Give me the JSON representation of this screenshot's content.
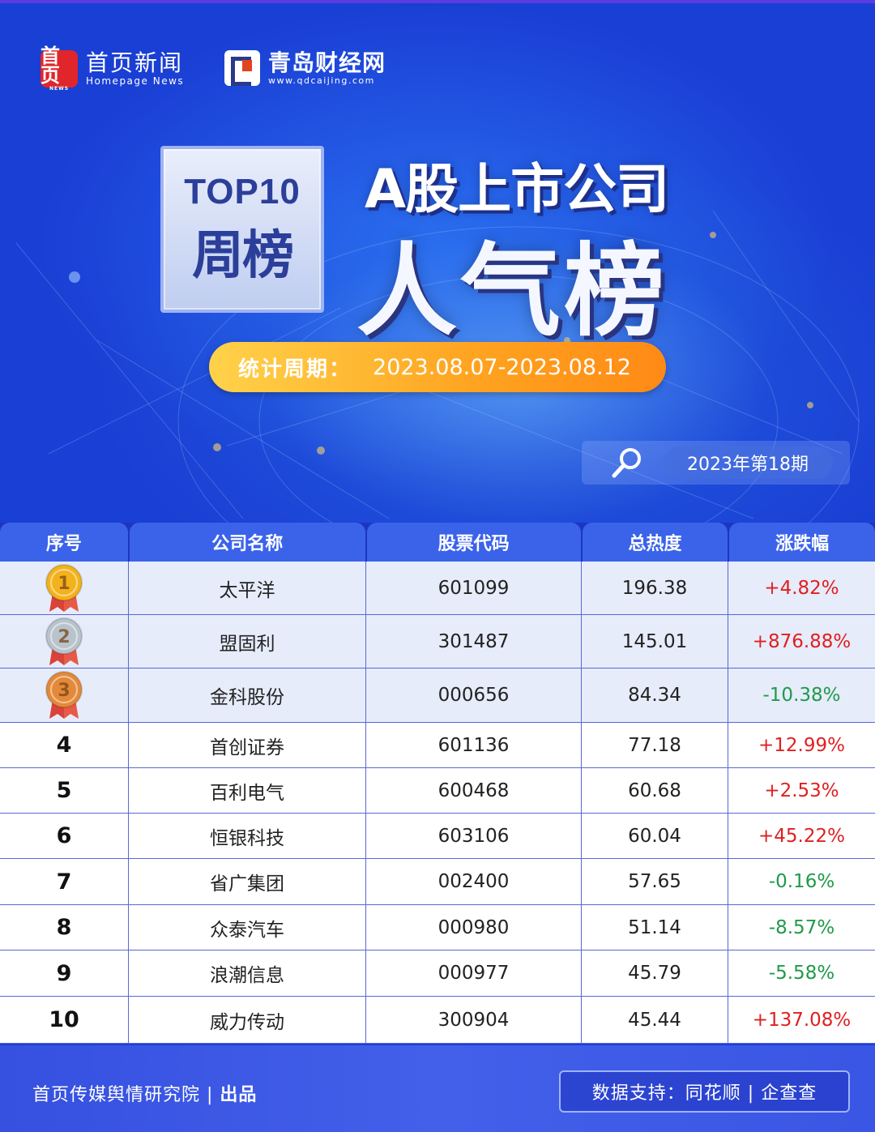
{
  "brand": {
    "logo1_mark": "首页",
    "logo1_mark_small": "NEWS",
    "logo1_cn": "首页新闻",
    "logo1_en": "Homepage News",
    "logo2_cn": "青岛财经网",
    "logo2_en": "www.qdcaijing.com"
  },
  "header": {
    "box_line1": "TOP10",
    "box_line2": "周榜",
    "title_line1": "A股上市公司",
    "title_line2": "人气榜"
  },
  "period": {
    "label": "统计周期：",
    "value": "2023.08.07-2023.08.12"
  },
  "issue": {
    "label": "2023年第18期",
    "icon": "magnifier-icon"
  },
  "table": {
    "headers": [
      "序号",
      "公司名称",
      "股票代码",
      "总热度",
      "涨跌幅"
    ],
    "rows": [
      {
        "rank": "1",
        "name": "太平洋",
        "code": "601099",
        "heat": "196.38",
        "change": "+4.82%"
      },
      {
        "rank": "2",
        "name": "盟固利",
        "code": "301487",
        "heat": "145.01",
        "change": "+876.88%"
      },
      {
        "rank": "3",
        "name": "金科股份",
        "code": "000656",
        "heat": "84.34",
        "change": "-10.38%"
      },
      {
        "rank": "4",
        "name": "首创证券",
        "code": "601136",
        "heat": "77.18",
        "change": "+12.99%"
      },
      {
        "rank": "5",
        "name": "百利电气",
        "code": "600468",
        "heat": "60.68",
        "change": "+2.53%"
      },
      {
        "rank": "6",
        "name": "恒银科技",
        "code": "603106",
        "heat": "60.04",
        "change": "+45.22%"
      },
      {
        "rank": "7",
        "name": "省广集团",
        "code": "002400",
        "heat": "57.65",
        "change": "-0.16%"
      },
      {
        "rank": "8",
        "name": "众泰汽车",
        "code": "000980",
        "heat": "51.14",
        "change": "-8.57%"
      },
      {
        "rank": "9",
        "name": "浪潮信息",
        "code": "000977",
        "heat": "45.79",
        "change": "-5.58%"
      },
      {
        "rank": "10",
        "name": "威力传动",
        "code": "300904",
        "heat": "45.44",
        "change": "+137.08%"
      }
    ]
  },
  "colors": {
    "up": "#e02020",
    "down": "#1f9a4a",
    "gold": "#f3b21c",
    "silver": "#b9c3cc",
    "bronze": "#e4893a"
  },
  "footer": {
    "left_text": "首页传媒舆情研究院",
    "left_sep": " | ",
    "left_bold": "出品",
    "right_text": "数据支持：同花顺 | 企查查"
  }
}
